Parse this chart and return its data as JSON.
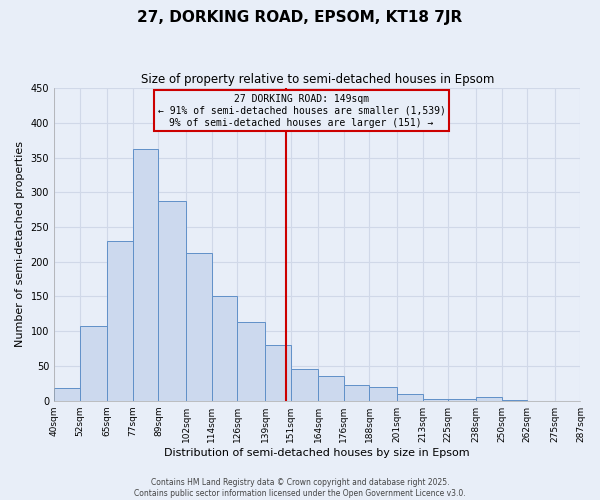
{
  "title": "27, DORKING ROAD, EPSOM, KT18 7JR",
  "subtitle": "Size of property relative to semi-detached houses in Epsom",
  "xlabel": "Distribution of semi-detached houses by size in Epsom",
  "ylabel": "Number of semi-detached properties",
  "bar_edges": [
    40,
    52,
    65,
    77,
    89,
    102,
    114,
    126,
    139,
    151,
    164,
    176,
    188,
    201,
    213,
    225,
    238,
    250,
    262,
    275,
    287
  ],
  "bar_heights": [
    18,
    108,
    230,
    363,
    287,
    212,
    150,
    113,
    80,
    45,
    35,
    23,
    20,
    9,
    2,
    2,
    5,
    1,
    0,
    0
  ],
  "bar_color": "#ccd9ee",
  "bar_edge_color": "#6090c8",
  "property_value": 149,
  "vline_color": "#cc0000",
  "annotation_box_edge_color": "#cc0000",
  "annotation_line1": "27 DORKING ROAD: 149sqm",
  "annotation_line2": "← 91% of semi-detached houses are smaller (1,539)",
  "annotation_line3": "9% of semi-detached houses are larger (151) →",
  "ylim": [
    0,
    450
  ],
  "yticks": [
    0,
    50,
    100,
    150,
    200,
    250,
    300,
    350,
    400,
    450
  ],
  "tick_labels": [
    "40sqm",
    "52sqm",
    "65sqm",
    "77sqm",
    "89sqm",
    "102sqm",
    "114sqm",
    "126sqm",
    "139sqm",
    "151sqm",
    "164sqm",
    "176sqm",
    "188sqm",
    "201sqm",
    "213sqm",
    "225sqm",
    "238sqm",
    "250sqm",
    "262sqm",
    "275sqm",
    "287sqm"
  ],
  "footnote": "Contains HM Land Registry data © Crown copyright and database right 2025.\nContains public sector information licensed under the Open Government Licence v3.0.",
  "background_color": "#e8eef8",
  "grid_color": "#d0d8e8",
  "title_fontsize": 11,
  "subtitle_fontsize": 8.5,
  "ylabel_fontsize": 8,
  "xlabel_fontsize": 8,
  "tick_fontsize": 6.5,
  "footnote_fontsize": 5.5
}
